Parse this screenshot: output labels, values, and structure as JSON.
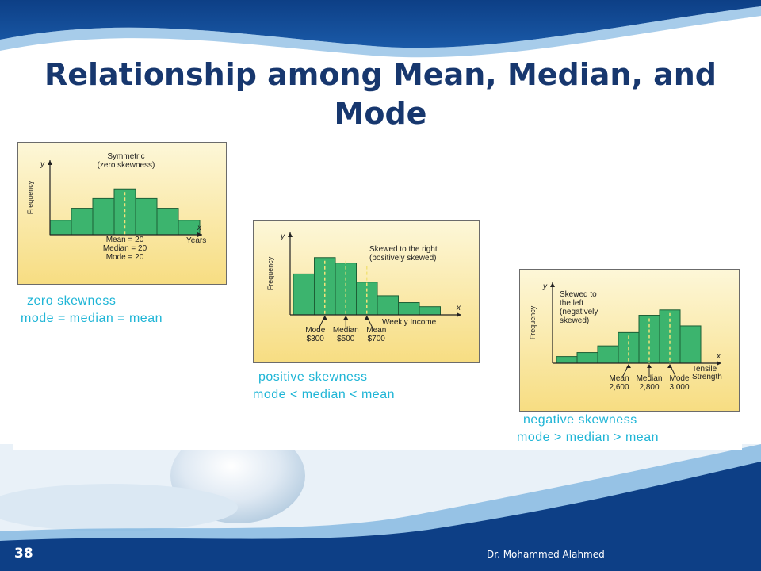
{
  "slide": {
    "title_line1": "Relationship among Mean, Median, and",
    "title_line2": "Mode",
    "page_number": "38",
    "author": "Dr. Mohammed Alahmed"
  },
  "colors": {
    "bar": "#3cb46e",
    "bar_edge": "#1d5f36",
    "marker": "#f2e27a",
    "caption": "#1fb5d6",
    "title": "#17376e"
  },
  "chart_data": [
    {
      "type": "bar",
      "title": "Symmetric\n(zero skewness)",
      "xlabel": "Years",
      "ylabel": "Frequency",
      "x_axis_letter": "x",
      "y_axis_letter": "y",
      "values": [
        12,
        22,
        30,
        38,
        30,
        22,
        12
      ],
      "ylim": [
        0,
        50
      ],
      "markers": [
        {
          "label_lines": [
            "Mean = 20",
            "Median = 20",
            "Mode = 20"
          ],
          "position": 3.5
        }
      ],
      "caption_lines": [
        "zero skewness",
        "mode = median = mean"
      ]
    },
    {
      "type": "bar",
      "title": "Skewed to the right\n(positively skewed)",
      "xlabel": "Weekly Income",
      "ylabel": "Frequency",
      "x_axis_letter": "x",
      "y_axis_letter": "y",
      "values": [
        30,
        42,
        38,
        24,
        14,
        9,
        6
      ],
      "ylim": [
        0,
        50
      ],
      "markers": [
        {
          "label_lines": [
            "Mode",
            "$300"
          ],
          "position": 1.5
        },
        {
          "label_lines": [
            "Median",
            "$500"
          ],
          "position": 2.5
        },
        {
          "label_lines": [
            "Mean",
            "$700"
          ],
          "position": 3.5
        }
      ],
      "caption_lines": [
        "positive skewness",
        "mode < median < mean"
      ]
    },
    {
      "type": "bar",
      "title": "Skewed to\nthe left\n(negatively\nskewed)",
      "xlabel": "Tensile\nStrength",
      "ylabel": "Frequency",
      "x_axis_letter": "x",
      "y_axis_letter": "y",
      "values": [
        5,
        8,
        13,
        23,
        36,
        40,
        28
      ],
      "ylim": [
        0,
        50
      ],
      "markers": [
        {
          "label_lines": [
            "Mean",
            "2,600"
          ],
          "position": 3.5
        },
        {
          "label_lines": [
            "Median",
            "2,800"
          ],
          "position": 4.5
        },
        {
          "label_lines": [
            "Mode",
            "3,000"
          ],
          "position": 5.5
        }
      ],
      "caption_lines": [
        "negative skewness",
        "mode > median > mean"
      ]
    }
  ]
}
